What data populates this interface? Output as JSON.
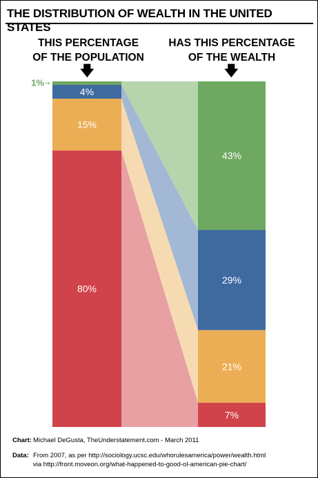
{
  "chart_data": {
    "type": "bar",
    "title": "THE DISTRIBUTION OF WEALTH IN THE UNITED STATES",
    "left_header": [
      "THIS PERCENTAGE",
      "OF THE POPULATION"
    ],
    "right_header": [
      "HAS THIS PERCENTAGE",
      "OF THE WEALTH"
    ],
    "groups": [
      {
        "population": 1,
        "wealth": 43,
        "color": "#6ea861",
        "band_color": "#b6d5ad"
      },
      {
        "population": 4,
        "wealth": 29,
        "color": "#3e6aa0",
        "band_color": "#a2b8d4"
      },
      {
        "population": 15,
        "wealth": 21,
        "color": "#ecae55",
        "band_color": "#f6dbb2"
      },
      {
        "population": 80,
        "wealth": 7,
        "color": "#d1434a",
        "band_color": "#e8a0a2"
      }
    ],
    "population_labels": [
      "1%",
      "4%",
      "15%",
      "80%"
    ],
    "wealth_labels": [
      "43%",
      "29%",
      "21%",
      "7%"
    ]
  },
  "footer": {
    "chart_label": "Chart:",
    "chart_text": "Michael DeGusta, TheUnderstatement.com - March 2011",
    "data_label": "Data:",
    "data_line1": "From 2007, as per http://sociology.ucsc.edu/whorulesamerica/power/wealth.html",
    "data_line2": "via http://front.moveon.org/what-happened-to-good-ol-american-pie-chart/"
  },
  "icons": {
    "down_arrow": "down-arrow-icon",
    "small_arrow": "right-arrow-icon"
  }
}
